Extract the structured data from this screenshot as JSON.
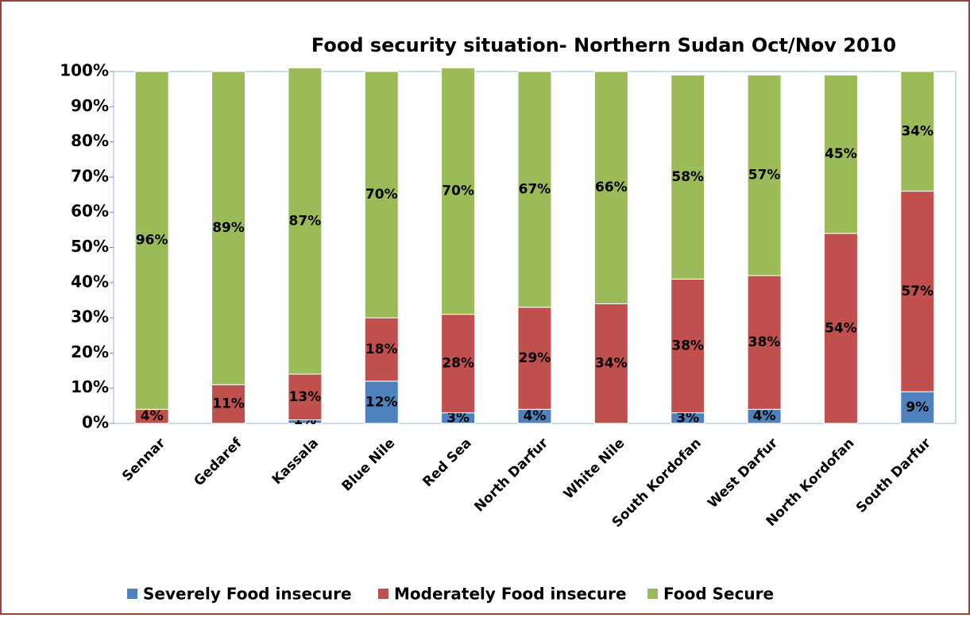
{
  "chart_data": {
    "type": "stacked_bar",
    "title": "Food security situation- Northern Sudan Oct/Nov 2010",
    "categories": [
      "Sennar",
      "Gedaref",
      "Kassala",
      "Blue Nile",
      "Red Sea",
      "North Darfur",
      "White Nile",
      "South Kordofan",
      "West Darfur",
      "North Kordofan",
      "South Darfur"
    ],
    "series": [
      {
        "name": "Severely Food insecure",
        "color": "#4f81bd",
        "values": [
          null,
          null,
          1,
          12,
          3,
          4,
          null,
          3,
          4,
          null,
          9
        ],
        "value_labels": [
          null,
          null,
          "1%",
          "12%",
          "3%",
          "4%",
          null,
          "3%",
          "4%",
          null,
          "9%"
        ]
      },
      {
        "name": "Moderately Food insecure",
        "color": "#c0504d",
        "values": [
          4,
          11,
          13,
          18,
          28,
          29,
          34,
          38,
          38,
          54,
          57
        ],
        "value_labels": [
          "4%",
          "11%",
          "13%",
          "18%",
          "28%",
          "29%",
          "34%",
          "38%",
          "38%",
          "54%",
          "57%"
        ]
      },
      {
        "name": "Food Secure",
        "color": "#9bbb59",
        "values": [
          96,
          89,
          87,
          70,
          70,
          67,
          66,
          58,
          57,
          45,
          34
        ],
        "value_labels": [
          "96%",
          "89%",
          "87%",
          "70%",
          "70%",
          "67%",
          "66%",
          "58%",
          "57%",
          "45%",
          "34%"
        ]
      }
    ],
    "ylim": [
      0,
      100
    ],
    "yticks": [
      {
        "value": 0,
        "label": "0%"
      },
      {
        "value": 10,
        "label": "10%"
      },
      {
        "value": 20,
        "label": "20%"
      },
      {
        "value": 30,
        "label": "30%"
      },
      {
        "value": 40,
        "label": "40%"
      },
      {
        "value": 50,
        "label": "50%"
      },
      {
        "value": 60,
        "label": "60%"
      },
      {
        "value": 70,
        "label": "70%"
      },
      {
        "value": 80,
        "label": "80%"
      },
      {
        "value": 90,
        "label": "90%"
      },
      {
        "value": 100,
        "label": "100%"
      }
    ],
    "legend": "bottom"
  }
}
